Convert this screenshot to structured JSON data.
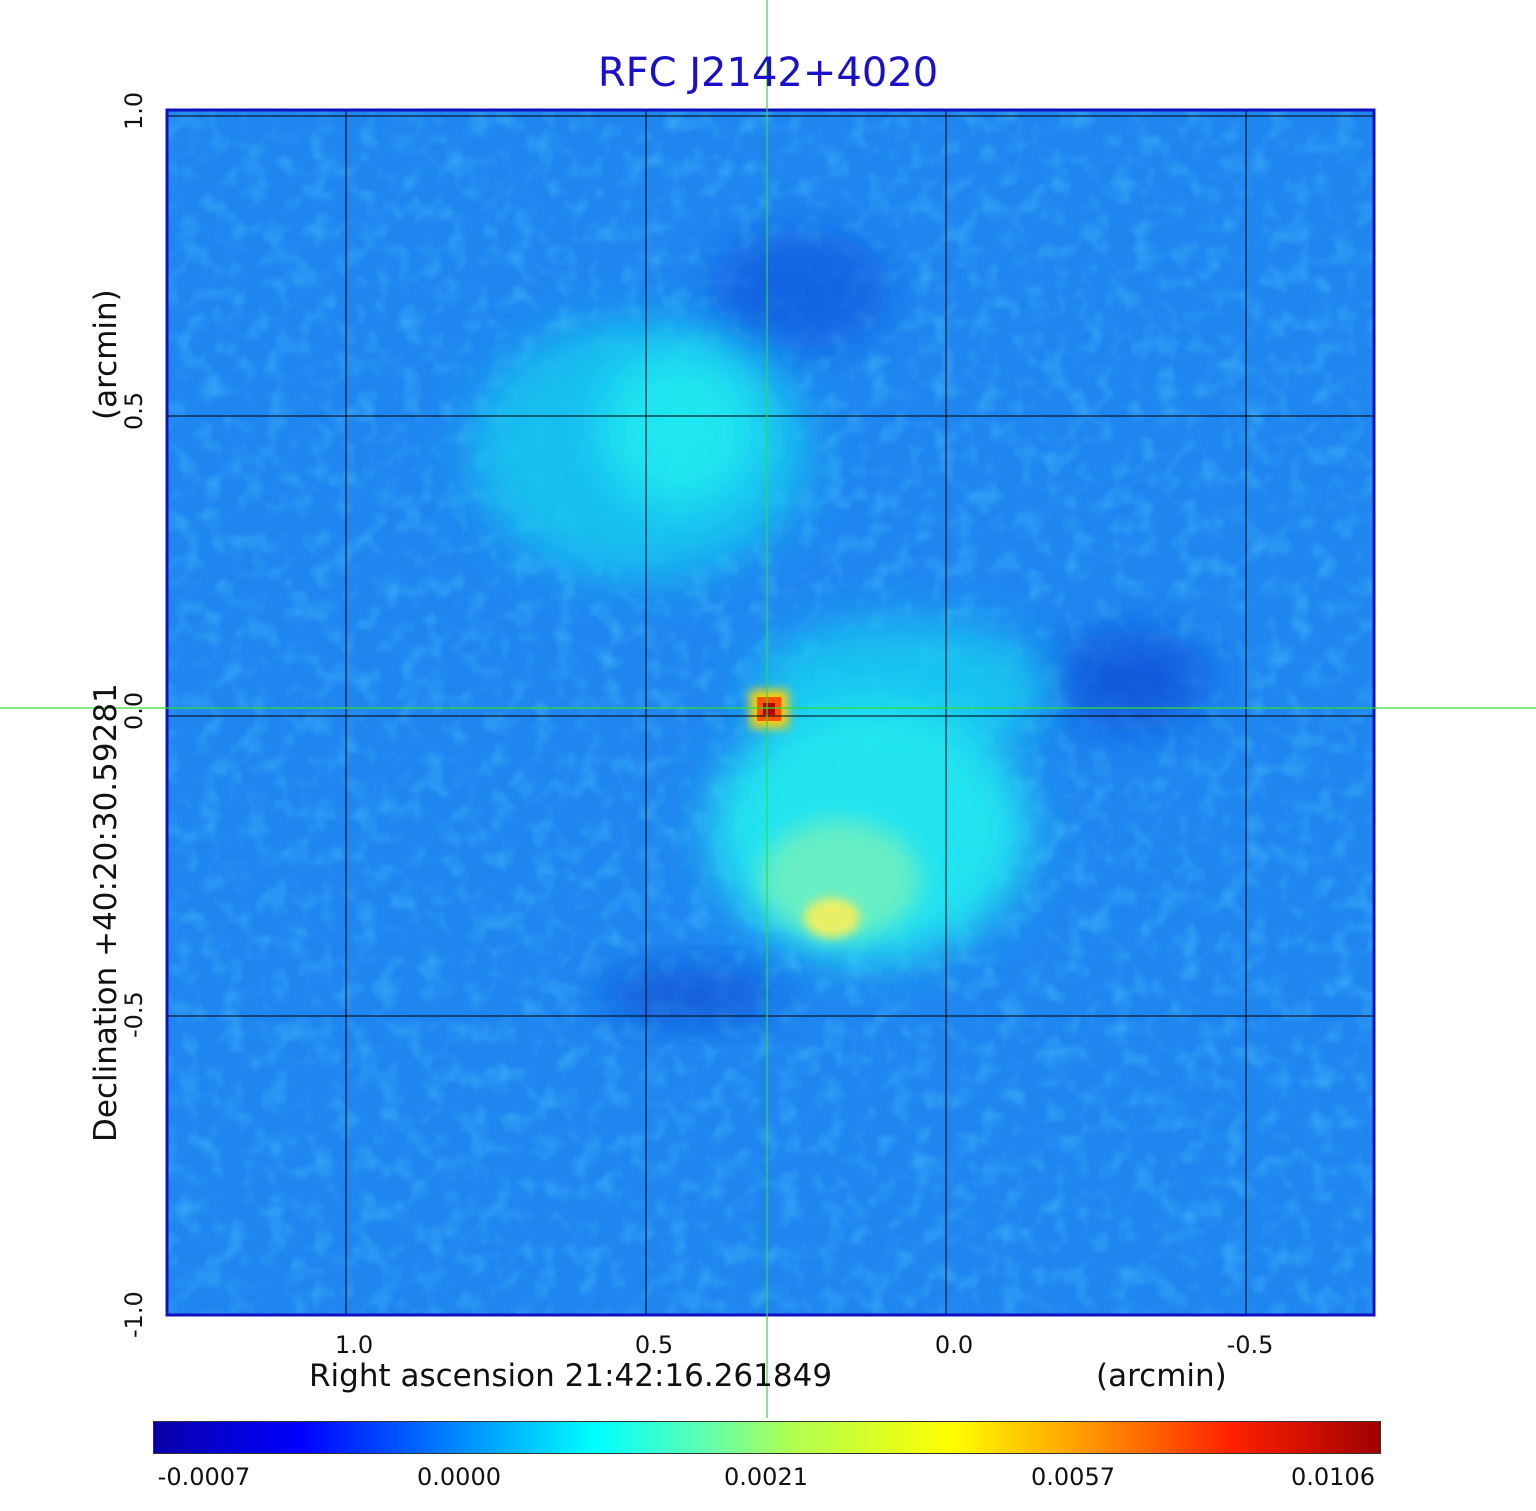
{
  "title": "RFC J2142+4020",
  "x_axis": {
    "label": "Right ascension  21:42:16.261849",
    "unit": "(arcmin)",
    "ticks": [
      "1.0",
      "0.5",
      "0.0",
      "-0.5"
    ]
  },
  "y_axis": {
    "label": "Declination  +40:20:30.59281",
    "unit": "(arcmin)",
    "ticks": [
      "1.0",
      "0.5",
      "0.0",
      "-0.5",
      "-1.0"
    ]
  },
  "colorbar": {
    "ticks": [
      "-0.0007",
      "0.0000",
      "0.0021",
      "0.0057",
      "0.0106"
    ],
    "colormap": "jet"
  },
  "colors": {
    "title": "#1a10c8",
    "frame": "#1010c0",
    "crosshair": "#33dd33",
    "grid": "#000000"
  }
}
